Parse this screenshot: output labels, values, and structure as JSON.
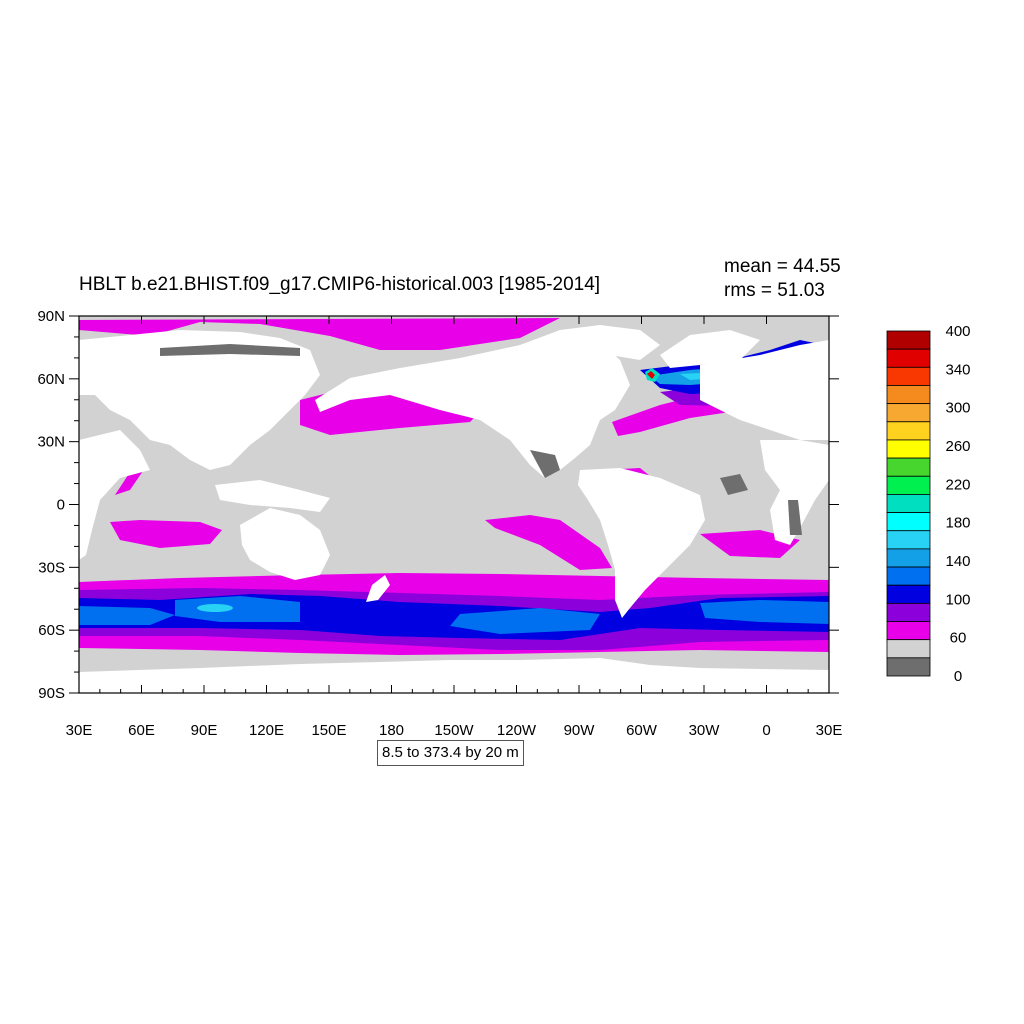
{
  "title": "HBLT b.e21.BHIST.f09_g17.CMIP6-historical.003 [1985-2014]",
  "stats": {
    "mean": "mean = 44.55",
    "rms": "rms = 51.03"
  },
  "range_label": "8.5 to 373.4 by 20 m",
  "chart_data": {
    "type": "heatmap",
    "x_ticks": [
      "30E",
      "60E",
      "90E",
      "120E",
      "150E",
      "180",
      "150W",
      "120W",
      "90W",
      "60W",
      "30W",
      "0",
      "30E"
    ],
    "y_ticks": [
      "90N",
      "60N",
      "30N",
      "0",
      "30S",
      "60S",
      "90S"
    ],
    "colorbar": {
      "labels": [
        "400",
        "340",
        "300",
        "260",
        "220",
        "180",
        "140",
        "100",
        "60",
        "0"
      ],
      "colors": [
        "#b00000",
        "#e00000",
        "#f83800",
        "#f58a1f",
        "#f7a830",
        "#ffd21f",
        "#ffff00",
        "#46d62e",
        "#00f050",
        "#00e0c0",
        "#00ffff",
        "#28d2f5",
        "#14a0e6",
        "#0070f0",
        "#0000e0",
        "#8c00dc",
        "#e800e8",
        "#d2d2d2",
        "#6e6e6e"
      ]
    }
  }
}
